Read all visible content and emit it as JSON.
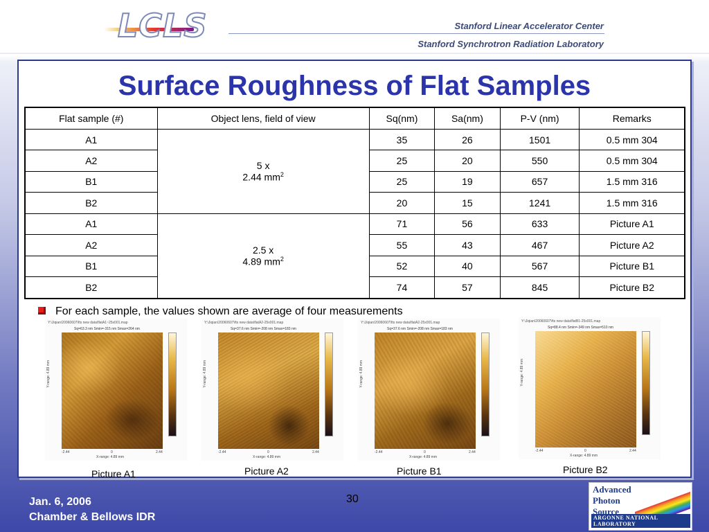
{
  "header": {
    "logo_text": "LCLS",
    "lab1": "Stanford Linear Accelerator Center",
    "lab2": "Stanford Synchrotron Radiation Laboratory"
  },
  "title": "Surface Roughness of Flat Samples",
  "table": {
    "headers": [
      "Flat sample (#)",
      "Object lens,  field of view",
      "Sq(nm)",
      "Sa(nm)",
      "P-V (nm)",
      "Remarks"
    ],
    "groups": [
      {
        "lens": "5 x",
        "fov": "2.44 mm",
        "sup": "2",
        "rows": [
          {
            "sample": "A1",
            "sq": "35",
            "sa": "26",
            "pv": "1501",
            "remarks": "0.5 mm 304"
          },
          {
            "sample": "A2",
            "sq": "25",
            "sa": "20",
            "pv": "550",
            "remarks": "0.5 mm 304"
          },
          {
            "sample": "B1",
            "sq": "25",
            "sa": "19",
            "pv": "657",
            "remarks": "1.5 mm 316"
          },
          {
            "sample": "B2",
            "sq": "20",
            "sa": "15",
            "pv": "1241",
            "remarks": "1.5 mm 316"
          }
        ]
      },
      {
        "lens": "2.5 x",
        "fov": "4.89 mm",
        "sup": "2",
        "rows": [
          {
            "sample": "A1",
            "sq": "71",
            "sa": "56",
            "pv": "633",
            "remarks": "Picture A1"
          },
          {
            "sample": "A2",
            "sq": "55",
            "sa": "43",
            "pv": "467",
            "remarks": "Picture A2"
          },
          {
            "sample": "B1",
            "sq": "52",
            "sa": "40",
            "pv": "567",
            "remarks": "Picture B1"
          },
          {
            "sample": "B2",
            "sq": "74",
            "sa": "57",
            "pv": "845",
            "remarks": "Picture B2"
          }
        ]
      }
    ]
  },
  "colors": {
    "title": "#2b34a8",
    "sa": "#1a33d6",
    "bullet": "#e51d1d"
  },
  "note": "For each sample, the values shown are average of four measurements",
  "pictures": [
    {
      "path": "Y:\\Jiqian\\20060607\\fts new data\\flatA1~25x001.map",
      "stats": "Sq=63.3 nm  Smin=-315 nm  Smax=264 nm",
      "caption": "Picture A1"
    },
    {
      "path": "Y:\\Jiqian\\20060607\\fts new data\\flatA2-25x001.map",
      "stats": "Sq=37.6 nm  Smin=-208 nm  Smax=183 nm",
      "caption": "Picture A2"
    },
    {
      "path": "Y:\\Jiqian\\20060607\\fts new data\\flatA2-25x001.map",
      "stats": "Sq=37.6 nm  Smin=-208 nm  Smax=183 nm",
      "caption": "Picture B1"
    },
    {
      "path": "Y:\\Jiqian\\20060607\\fts new data\\flatB1-25x001.map",
      "stats": "Sq=88.4 nm  Smin=-349 nm  Smax=510 nm",
      "caption": "Picture B2"
    }
  ],
  "axis": {
    "x_min": "-2.44",
    "x_mid": "0",
    "x_max": "2.44",
    "x_label": "X-range: 4.89 mm",
    "y_label": "Y-range: 4.89 mm"
  },
  "footer": {
    "date": "Jan. 6, 2006",
    "subtitle": "Chamber & Bellows IDR",
    "page": "30",
    "aps_line1": "Advanced",
    "aps_line2": "Photon",
    "aps_line3": "Source",
    "anl": "ARGONNE NATIONAL LABORATORY"
  }
}
